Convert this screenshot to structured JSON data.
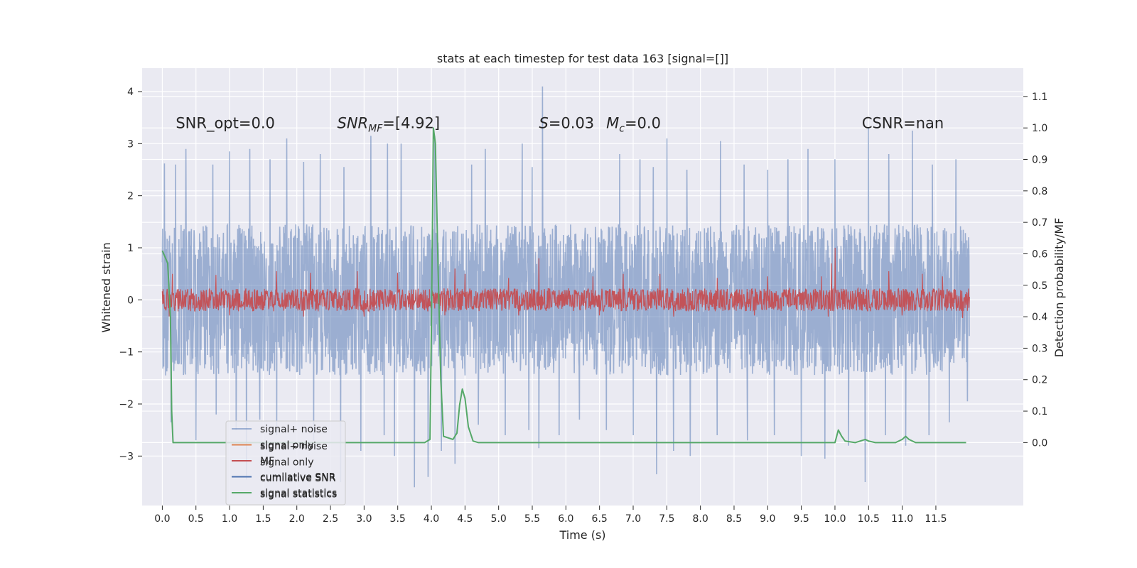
{
  "chart_data": {
    "type": "line",
    "title": "stats at each timestep for test data 163 [signal=[]]",
    "xlabel": "Time (s)",
    "ylabel": "Whitened strain",
    "y2label": "Detection probability/MF",
    "xlim": [
      -0.3,
      12.8
    ],
    "ylim": [
      -3.95,
      4.45
    ],
    "y2lim": [
      -0.2,
      1.19
    ],
    "xticks": [
      "0.0",
      "0.5",
      "1.0",
      "1.5",
      "2.0",
      "2.5",
      "3.0",
      "3.5",
      "4.0",
      "4.5",
      "5.0",
      "5.5",
      "6.0",
      "6.5",
      "7.0",
      "7.5",
      "8.0",
      "8.5",
      "9.0",
      "9.5",
      "10.0",
      "10.5",
      "11.0",
      "11.5"
    ],
    "yticks": [
      "−3",
      "−2",
      "−1",
      "0",
      "1",
      "2",
      "3",
      "4"
    ],
    "y2ticks": [
      "0.0",
      "0.1",
      "0.2",
      "0.3",
      "0.4",
      "0.5",
      "0.6",
      "0.7",
      "0.8",
      "0.9",
      "1.0",
      "1.1"
    ],
    "grid": true,
    "background": "#eaeaf2",
    "legend_position": "lower-left",
    "legend": [
      {
        "label": "signal+ noise",
        "color": "#4c72b0"
      },
      {
        "label": "signal only",
        "color": "#dd8452"
      },
      {
        "label": "MF",
        "color": "#c44e52"
      },
      {
        "label": "cumilative SNR",
        "color": "#4c72b0"
      },
      {
        "label": "signal statistics",
        "color": "#55a868"
      }
    ],
    "legend_ghost_labels": [
      "signal+ noise",
      "signal only",
      "cumilative SNR",
      "signal statistics"
    ],
    "annotations": [
      {
        "parts": [
          {
            "t": "SNR_opt=0.0"
          }
        ],
        "x": 0.2
      },
      {
        "parts": [
          {
            "t": "SNR",
            "i": true
          },
          {
            "t": "MF",
            "i": true,
            "sub": true
          },
          {
            "t": "=[4.92]"
          }
        ],
        "x": 2.6
      },
      {
        "parts": [
          {
            "t": "S",
            "i": true
          },
          {
            "t": "=0.03"
          }
        ],
        "x": 5.6
      },
      {
        "parts": [
          {
            "t": "M",
            "i": true
          },
          {
            "t": "c",
            "i": true,
            "sub": true
          },
          {
            "t": "=0.0"
          }
        ],
        "x": 6.6
      },
      {
        "parts": [
          {
            "t": "CSNR=nan"
          }
        ],
        "x": 10.4
      }
    ],
    "annotation_y": 3.3,
    "series": [
      {
        "name": "signal+ noise",
        "color": "#4c72b0",
        "t_start": 0.0,
        "t_end": 12.0,
        "band": [
          -1.45,
          1.45
        ],
        "peaks": [
          [
            0.03,
            2.62
          ],
          [
            0.2,
            2.6
          ],
          [
            0.35,
            2.9
          ],
          [
            0.75,
            2.6
          ],
          [
            1.0,
            2.85
          ],
          [
            1.3,
            2.9
          ],
          [
            1.6,
            2.7
          ],
          [
            1.85,
            3.1
          ],
          [
            2.1,
            2.65
          ],
          [
            2.35,
            2.8
          ],
          [
            2.7,
            2.55
          ],
          [
            3.1,
            3.15
          ],
          [
            3.35,
            3.0
          ],
          [
            3.55,
            3.0
          ],
          [
            3.75,
            2.95
          ],
          [
            4.05,
            3.15
          ],
          [
            4.35,
            2.6
          ],
          [
            4.6,
            2.6
          ],
          [
            4.8,
            2.9
          ],
          [
            5.1,
            2.55
          ],
          [
            5.35,
            3.0
          ],
          [
            5.5,
            2.55
          ],
          [
            5.65,
            4.1
          ],
          [
            5.9,
            2.6
          ],
          [
            6.2,
            3.05
          ],
          [
            6.6,
            2.8
          ],
          [
            6.8,
            2.8
          ],
          [
            7.1,
            2.7
          ],
          [
            7.3,
            2.55
          ],
          [
            7.5,
            3.1
          ],
          [
            7.8,
            2.5
          ],
          [
            8.3,
            3.05
          ],
          [
            8.65,
            2.6
          ],
          [
            9.0,
            2.5
          ],
          [
            9.3,
            2.7
          ],
          [
            9.6,
            2.9
          ],
          [
            10.0,
            2.7
          ],
          [
            10.2,
            2.6
          ],
          [
            10.5,
            3.3
          ],
          [
            10.8,
            2.8
          ],
          [
            11.15,
            3.25
          ],
          [
            11.45,
            2.6
          ],
          [
            11.8,
            2.7
          ]
        ],
        "troughs": [
          [
            0.05,
            -1.45
          ],
          [
            0.13,
            -2.35
          ],
          [
            0.5,
            -2.7
          ],
          [
            0.8,
            -2.2
          ],
          [
            1.1,
            -2.5
          ],
          [
            1.25,
            -3.45
          ],
          [
            1.45,
            -2.3
          ],
          [
            1.7,
            -2.6
          ],
          [
            2.25,
            -2.7
          ],
          [
            2.65,
            -3.5
          ],
          [
            2.95,
            -2.9
          ],
          [
            3.3,
            -2.6
          ],
          [
            3.45,
            -3.0
          ],
          [
            3.75,
            -3.6
          ],
          [
            3.95,
            -3.4
          ],
          [
            4.15,
            -2.9
          ],
          [
            4.35,
            -3.15
          ],
          [
            4.7,
            -2.4
          ],
          [
            5.1,
            -2.6
          ],
          [
            5.45,
            -2.5
          ],
          [
            5.6,
            -2.85
          ],
          [
            5.9,
            -2.6
          ],
          [
            6.2,
            -2.3
          ],
          [
            6.6,
            -2.5
          ],
          [
            7.0,
            -2.6
          ],
          [
            7.35,
            -3.35
          ],
          [
            7.6,
            -2.9
          ],
          [
            7.85,
            -3.0
          ],
          [
            8.25,
            -2.6
          ],
          [
            8.7,
            -2.7
          ],
          [
            9.1,
            -2.6
          ],
          [
            9.5,
            -3.0
          ],
          [
            9.85,
            -3.05
          ],
          [
            10.2,
            -2.8
          ],
          [
            10.45,
            -3.5
          ],
          [
            10.75,
            -2.6
          ],
          [
            11.05,
            -2.8
          ],
          [
            11.4,
            -2.6
          ],
          [
            11.7,
            -2.35
          ],
          [
            11.97,
            -1.95
          ]
        ]
      },
      {
        "name": "MF",
        "color": "#c44e52",
        "t_start": 0.0,
        "t_end": 12.0,
        "band": [
          -0.22,
          0.22
        ],
        "peaks": [
          [
            0.15,
            0.5
          ],
          [
            0.8,
            0.48
          ],
          [
            1.7,
            0.55
          ],
          [
            2.2,
            0.52
          ],
          [
            2.9,
            0.55
          ],
          [
            3.5,
            0.52
          ],
          [
            4.35,
            0.6
          ],
          [
            4.5,
            0.5
          ],
          [
            5.15,
            0.42
          ],
          [
            5.6,
            0.8
          ],
          [
            6.4,
            0.45
          ],
          [
            6.85,
            0.5
          ],
          [
            7.4,
            0.5
          ],
          [
            8.25,
            0.42
          ],
          [
            9.0,
            0.45
          ],
          [
            9.8,
            0.45
          ],
          [
            9.95,
            0.7
          ],
          [
            10.0,
            1.0
          ],
          [
            10.8,
            0.55
          ],
          [
            11.3,
            0.5
          ],
          [
            11.6,
            0.45
          ]
        ],
        "troughs": [
          [
            0.1,
            -0.32
          ],
          [
            1.0,
            -0.3
          ],
          [
            2.1,
            -0.32
          ],
          [
            3.0,
            -0.32
          ],
          [
            4.2,
            -0.3
          ],
          [
            5.3,
            -0.3
          ],
          [
            6.5,
            -0.3
          ],
          [
            7.6,
            -0.32
          ],
          [
            8.8,
            -0.3
          ],
          [
            9.9,
            -0.32
          ],
          [
            11.0,
            -0.3
          ],
          [
            11.9,
            -0.35
          ]
        ]
      },
      {
        "name": "signal statistics",
        "color": "#55a868",
        "axis": "y2",
        "x": [
          0.0,
          0.08,
          0.12,
          0.14,
          0.16,
          0.2,
          1.0,
          2.0,
          3.0,
          3.9,
          3.98,
          4.0,
          4.03,
          4.06,
          4.1,
          4.14,
          4.18,
          4.25,
          4.32,
          4.38,
          4.42,
          4.46,
          4.5,
          4.55,
          4.62,
          4.7,
          5.0,
          6.0,
          8.0,
          9.5,
          10.0,
          10.05,
          10.1,
          10.15,
          10.3,
          10.45,
          10.5,
          10.6,
          10.9,
          11.0,
          11.05,
          11.1,
          11.2,
          11.35,
          11.5,
          11.6,
          11.8,
          11.95
        ],
        "y": [
          0.61,
          0.57,
          0.4,
          0.1,
          0.0,
          0.0,
          0.0,
          0.0,
          0.0,
          0.0,
          0.01,
          0.35,
          1.0,
          0.95,
          0.55,
          0.2,
          0.02,
          0.015,
          0.01,
          0.03,
          0.12,
          0.17,
          0.14,
          0.05,
          0.005,
          0.0,
          0.0,
          0.0,
          0.0,
          0.0,
          0.0,
          0.04,
          0.02,
          0.005,
          0.0,
          0.01,
          0.005,
          0.0,
          0.0,
          0.01,
          0.02,
          0.01,
          0.0,
          0.0,
          0.0,
          0.0,
          0.0,
          0.0
        ]
      }
    ]
  }
}
